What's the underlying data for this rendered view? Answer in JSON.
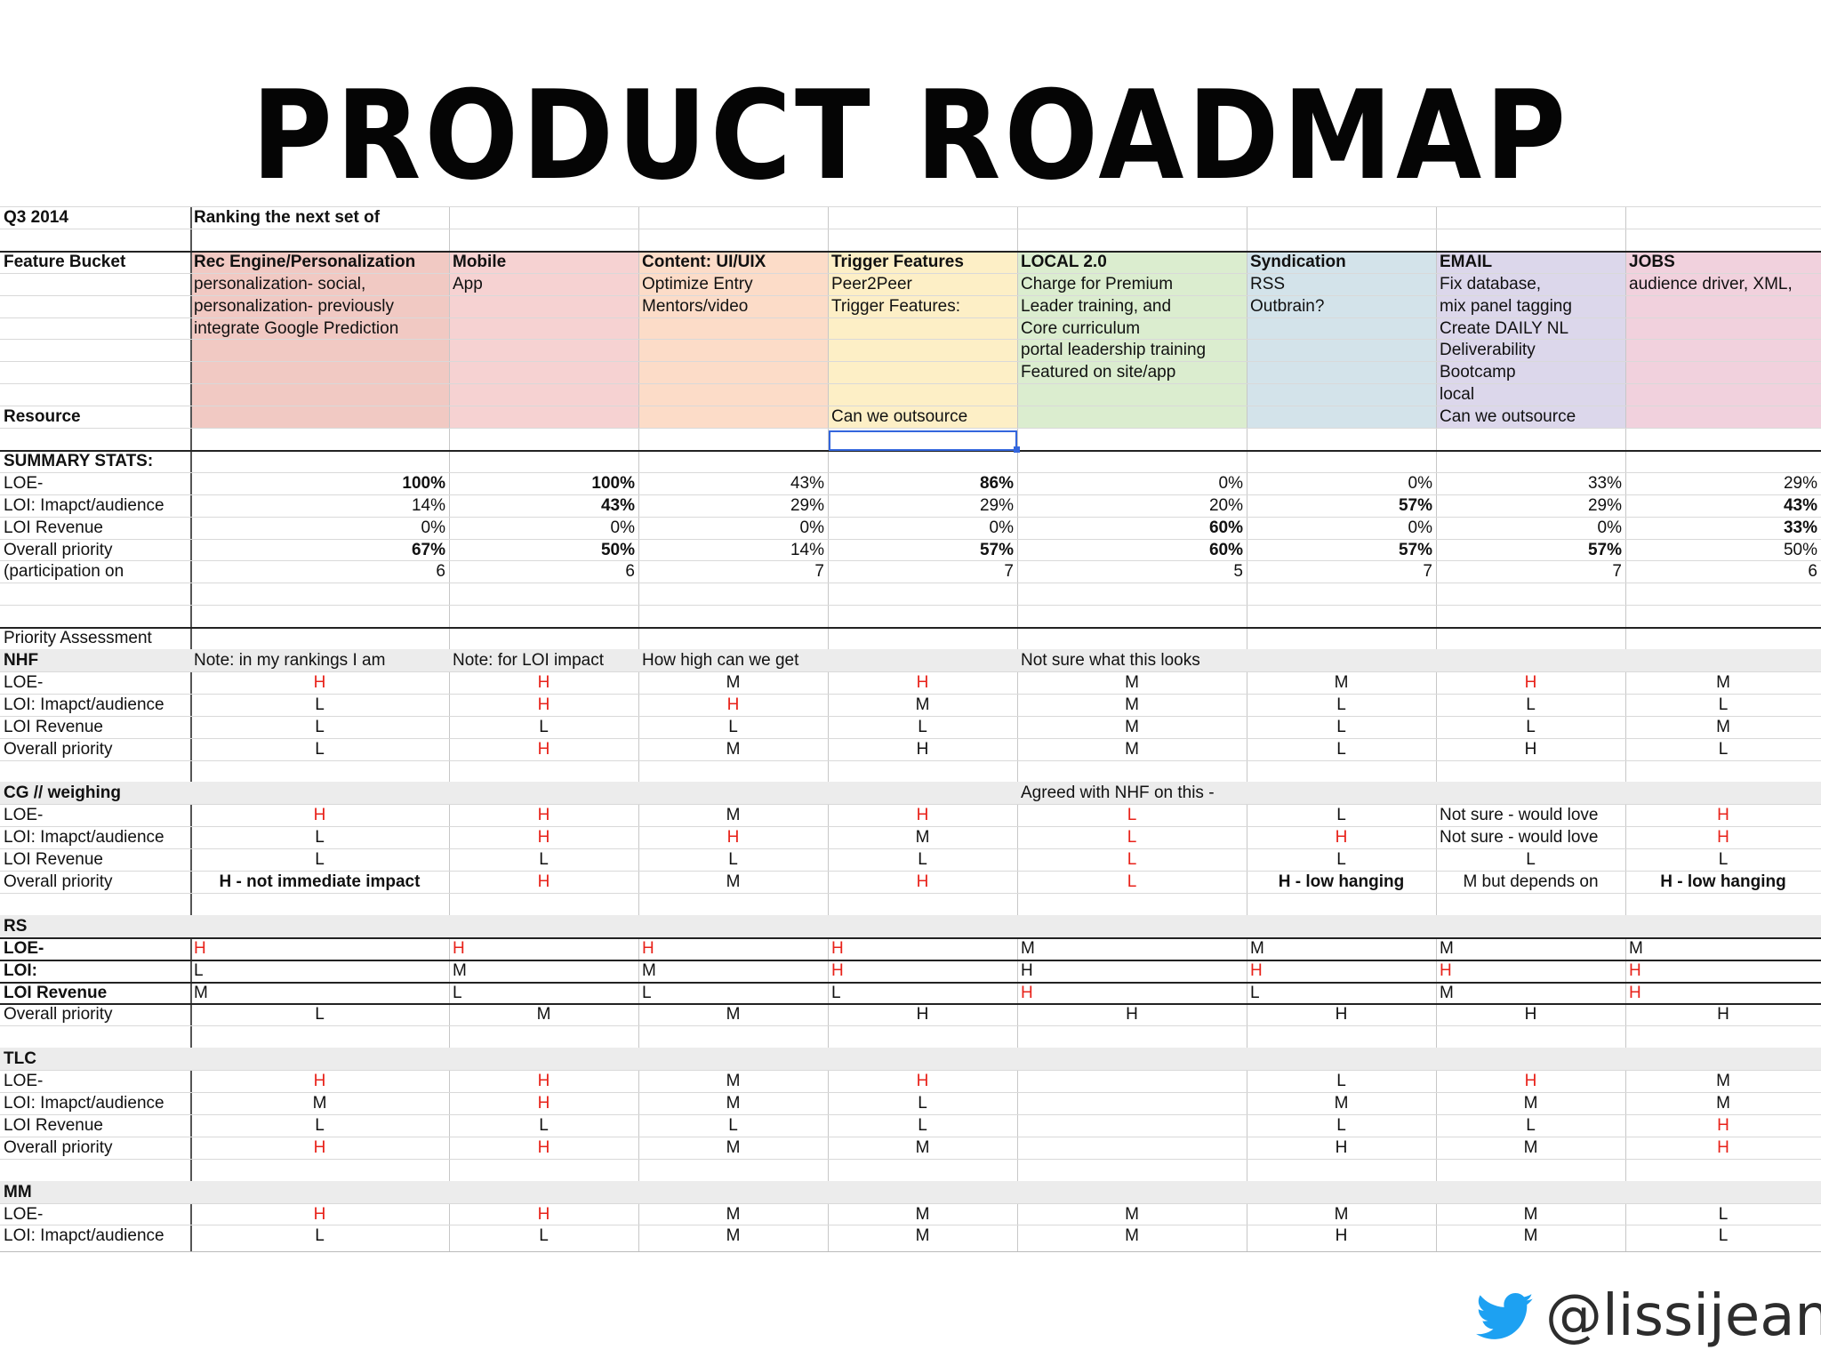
{
  "slide": {
    "title": "PRODUCT ROADMAP",
    "twitter_handle": "@lissijean"
  },
  "colors": {
    "rec_engine": "#f1c9c3",
    "mobile": "#f6d2d2",
    "content": "#fcdcc8",
    "trigger": "#fdefc6",
    "local": "#dbedcf",
    "syndication": "#d3e3ea",
    "email": "#dcd7eb",
    "jobs": "#f1d1dd",
    "alert_red": "#e8221a",
    "selection_blue": "#3366dd"
  },
  "sheet": {
    "rows": [
      [
        {
          "t": "Q3 2014",
          "b": 1
        },
        {
          "t": "Ranking the next set of",
          "b": 1,
          "o": 1
        }
      ],
      [],
      [
        {
          "t": "Feature Bucket",
          "b": 1
        },
        {
          "t": "Rec Engine/Personalization",
          "b": 1
        },
        {
          "t": "Mobile",
          "b": 1
        },
        {
          "t": "Content: UI/UIX",
          "b": 1
        },
        {
          "t": "Trigger Features",
          "b": 1
        },
        {
          "t": "LOCAL 2.0",
          "b": 1
        },
        {
          "t": "Syndication",
          "b": 1
        },
        {
          "t": "EMAIL",
          "b": 1
        },
        {
          "t": "JOBS",
          "b": 1
        }
      ],
      [
        {
          "t": ""
        },
        {
          "t": "personalization- social,"
        },
        {
          "t": "App"
        },
        {
          "t": "Optimize Entry"
        },
        {
          "t": "Peer2Peer"
        },
        {
          "t": "Charge for Premium"
        },
        {
          "t": "RSS"
        },
        {
          "t": "Fix database,"
        },
        {
          "t": "audience driver, XML,"
        }
      ],
      [
        {
          "t": ""
        },
        {
          "t": "personalization- previously"
        },
        {
          "t": ""
        },
        {
          "t": "Mentors/video"
        },
        {
          "t": "Trigger Features:"
        },
        {
          "t": "Leader training, and"
        },
        {
          "t": "Outbrain?"
        },
        {
          "t": "mix panel tagging"
        },
        {
          "t": ""
        }
      ],
      [
        {
          "t": ""
        },
        {
          "t": "integrate Google Prediction"
        },
        {
          "t": ""
        },
        {
          "t": ""
        },
        {
          "t": ""
        },
        {
          "t": "Core curriculum"
        },
        {
          "t": ""
        },
        {
          "t": "Create DAILY NL"
        },
        {
          "t": ""
        }
      ],
      [
        {
          "t": ""
        },
        {
          "t": ""
        },
        {
          "t": ""
        },
        {
          "t": ""
        },
        {
          "t": ""
        },
        {
          "t": "portal leadership training"
        },
        {
          "t": ""
        },
        {
          "t": "Deliverability"
        },
        {
          "t": ""
        }
      ],
      [
        {
          "t": ""
        },
        {
          "t": ""
        },
        {
          "t": ""
        },
        {
          "t": ""
        },
        {
          "t": ""
        },
        {
          "t": "Featured on site/app"
        },
        {
          "t": ""
        },
        {
          "t": "Bootcamp"
        },
        {
          "t": ""
        }
      ],
      [
        {
          "t": ""
        },
        {
          "t": ""
        },
        {
          "t": ""
        },
        {
          "t": ""
        },
        {
          "t": ""
        },
        {
          "t": ""
        },
        {
          "t": ""
        },
        {
          "t": "local"
        },
        {
          "t": ""
        }
      ],
      [
        {
          "t": "Resource",
          "b": 1
        },
        {
          "t": ""
        },
        {
          "t": ""
        },
        {
          "t": ""
        },
        {
          "t": "Can we outsource"
        },
        {
          "t": ""
        },
        {
          "t": ""
        },
        {
          "t": "Can we outsource"
        },
        {
          "t": ""
        }
      ],
      [],
      [
        {
          "t": "SUMMARY STATS:",
          "b": 1,
          "o": 1
        }
      ],
      [
        {
          "t": "LOE-"
        },
        {
          "t": "100%",
          "b": 1
        },
        {
          "t": "100%",
          "b": 1
        },
        {
          "t": "43%"
        },
        {
          "t": "86%",
          "b": 1
        },
        {
          "t": "0%"
        },
        {
          "t": "0%"
        },
        {
          "t": "33%"
        },
        {
          "t": "29%"
        }
      ],
      [
        {
          "t": "LOI: Imapct/audience"
        },
        {
          "t": "14%"
        },
        {
          "t": "43%",
          "b": 1
        },
        {
          "t": "29%"
        },
        {
          "t": "29%"
        },
        {
          "t": "20%"
        },
        {
          "t": "57%",
          "b": 1
        },
        {
          "t": "29%"
        },
        {
          "t": "43%",
          "b": 1
        }
      ],
      [
        {
          "t": "LOI Revenue"
        },
        {
          "t": "0%"
        },
        {
          "t": "0%"
        },
        {
          "t": "0%"
        },
        {
          "t": "0%"
        },
        {
          "t": "60%",
          "b": 1
        },
        {
          "t": "0%"
        },
        {
          "t": "0%"
        },
        {
          "t": "33%",
          "b": 1
        }
      ],
      [
        {
          "t": "Overall priority"
        },
        {
          "t": "67%",
          "b": 1
        },
        {
          "t": "50%",
          "b": 1
        },
        {
          "t": "14%"
        },
        {
          "t": "57%",
          "b": 1
        },
        {
          "t": "60%",
          "b": 1
        },
        {
          "t": "57%",
          "b": 1
        },
        {
          "t": "57%",
          "b": 1
        },
        {
          "t": "50%"
        }
      ],
      [
        {
          "t": "(participation on"
        },
        {
          "t": "6"
        },
        {
          "t": "6"
        },
        {
          "t": "7"
        },
        {
          "t": "7"
        },
        {
          "t": "5"
        },
        {
          "t": "7"
        },
        {
          "t": "7"
        },
        {
          "t": "6"
        }
      ],
      [],
      [],
      [
        {
          "t": "Priority Assessment"
        }
      ],
      [
        {
          "t": "NHF",
          "b": 1
        },
        {
          "t": "Note: in my rankings I am"
        },
        {
          "t": "Note: for LOI impact"
        },
        {
          "t": "How high can we get"
        },
        {
          "t": ""
        },
        {
          "t": "Not sure what this looks",
          "o": 1
        }
      ],
      [
        {
          "t": "LOE-"
        },
        {
          "t": "H",
          "r": 1
        },
        {
          "t": "H",
          "r": 1
        },
        {
          "t": "M"
        },
        {
          "t": "H",
          "r": 1
        },
        {
          "t": "M"
        },
        {
          "t": "M"
        },
        {
          "t": "H",
          "r": 1
        },
        {
          "t": "M"
        }
      ],
      [
        {
          "t": "LOI: Imapct/audience"
        },
        {
          "t": "L"
        },
        {
          "t": "H",
          "r": 1
        },
        {
          "t": "H",
          "r": 1
        },
        {
          "t": "M"
        },
        {
          "t": "M"
        },
        {
          "t": "L"
        },
        {
          "t": "L"
        },
        {
          "t": "L"
        }
      ],
      [
        {
          "t": "LOI Revenue"
        },
        {
          "t": "L"
        },
        {
          "t": "L"
        },
        {
          "t": "L"
        },
        {
          "t": "L"
        },
        {
          "t": "M"
        },
        {
          "t": "L"
        },
        {
          "t": "L"
        },
        {
          "t": "M"
        }
      ],
      [
        {
          "t": "Overall priority"
        },
        {
          "t": "L"
        },
        {
          "t": "H",
          "r": 1
        },
        {
          "t": "M"
        },
        {
          "t": "H"
        },
        {
          "t": "M"
        },
        {
          "t": "L"
        },
        {
          "t": "H"
        },
        {
          "t": "L"
        }
      ],
      [],
      [
        {
          "t": "CG // weighing",
          "b": 1
        },
        {
          "t": ""
        },
        {
          "t": ""
        },
        {
          "t": ""
        },
        {
          "t": ""
        },
        {
          "t": "Agreed with NHF on this -",
          "o": 1
        }
      ],
      [
        {
          "t": "LOE-"
        },
        {
          "t": "H",
          "r": 1
        },
        {
          "t": "H",
          "r": 1
        },
        {
          "t": "M"
        },
        {
          "t": "H",
          "r": 1
        },
        {
          "t": "L",
          "r": 1
        },
        {
          "t": "L"
        },
        {
          "t": "Not sure - would love"
        },
        {
          "t": "H",
          "r": 1
        }
      ],
      [
        {
          "t": "LOI: Imapct/audience"
        },
        {
          "t": "L"
        },
        {
          "t": "H",
          "r": 1
        },
        {
          "t": "H",
          "r": 1
        },
        {
          "t": "M"
        },
        {
          "t": "L",
          "r": 1
        },
        {
          "t": "H",
          "r": 1
        },
        {
          "t": "Not sure - would love"
        },
        {
          "t": "H",
          "r": 1
        }
      ],
      [
        {
          "t": "LOI Revenue"
        },
        {
          "t": "L"
        },
        {
          "t": "L"
        },
        {
          "t": "L"
        },
        {
          "t": "L"
        },
        {
          "t": "L",
          "r": 1
        },
        {
          "t": "L"
        },
        {
          "t": "L"
        },
        {
          "t": "L"
        }
      ],
      [
        {
          "t": "Overall priority"
        },
        {
          "t": "H - not immediate impact",
          "b": 1
        },
        {
          "t": "H",
          "r": 1
        },
        {
          "t": "M"
        },
        {
          "t": "H",
          "r": 1
        },
        {
          "t": "L",
          "r": 1
        },
        {
          "t": "H - low hanging",
          "b": 1
        },
        {
          "t": "M but depends on"
        },
        {
          "t": "H - low hanging",
          "b": 1
        }
      ],
      [],
      [
        {
          "t": "RS",
          "b": 1
        }
      ],
      [
        {
          "t": "LOE-",
          "b": 1
        },
        {
          "t": "H",
          "r": 1
        },
        {
          "t": "H",
          "r": 1
        },
        {
          "t": "H",
          "r": 1
        },
        {
          "t": "H",
          "r": 1
        },
        {
          "t": "M"
        },
        {
          "t": "M"
        },
        {
          "t": "M"
        },
        {
          "t": "M"
        }
      ],
      [
        {
          "t": "LOI:",
          "b": 1
        },
        {
          "t": "L"
        },
        {
          "t": "M"
        },
        {
          "t": "M"
        },
        {
          "t": "H",
          "r": 1
        },
        {
          "t": "H"
        },
        {
          "t": "H",
          "r": 1
        },
        {
          "t": "H",
          "r": 1
        },
        {
          "t": "H",
          "r": 1
        }
      ],
      [
        {
          "t": "LOI Revenue",
          "b": 1
        },
        {
          "t": "M"
        },
        {
          "t": "L"
        },
        {
          "t": "L"
        },
        {
          "t": "L"
        },
        {
          "t": "H",
          "r": 1
        },
        {
          "t": "L"
        },
        {
          "t": "M"
        },
        {
          "t": "H",
          "r": 1
        }
      ],
      [
        {
          "t": "Overall priority"
        },
        {
          "t": "L"
        },
        {
          "t": "M"
        },
        {
          "t": "M"
        },
        {
          "t": "H"
        },
        {
          "t": "H"
        },
        {
          "t": "H"
        },
        {
          "t": "H"
        },
        {
          "t": "H"
        }
      ],
      [],
      [
        {
          "t": "TLC",
          "b": 1
        }
      ],
      [
        {
          "t": "LOE-"
        },
        {
          "t": "H",
          "r": 1
        },
        {
          "t": "H",
          "r": 1
        },
        {
          "t": "M"
        },
        {
          "t": "H",
          "r": 1
        },
        {
          "t": ""
        },
        {
          "t": "L"
        },
        {
          "t": "H",
          "r": 1
        },
        {
          "t": "M"
        }
      ],
      [
        {
          "t": "LOI: Imapct/audience"
        },
        {
          "t": "M"
        },
        {
          "t": "H",
          "r": 1
        },
        {
          "t": "M"
        },
        {
          "t": "L"
        },
        {
          "t": ""
        },
        {
          "t": "M"
        },
        {
          "t": "M"
        },
        {
          "t": "M"
        }
      ],
      [
        {
          "t": "LOI Revenue"
        },
        {
          "t": "L"
        },
        {
          "t": "L"
        },
        {
          "t": "L"
        },
        {
          "t": "L"
        },
        {
          "t": ""
        },
        {
          "t": "L"
        },
        {
          "t": "L"
        },
        {
          "t": "H",
          "r": 1
        }
      ],
      [
        {
          "t": "Overall priority"
        },
        {
          "t": "H",
          "r": 1
        },
        {
          "t": "H",
          "r": 1
        },
        {
          "t": "M"
        },
        {
          "t": "M"
        },
        {
          "t": ""
        },
        {
          "t": "H"
        },
        {
          "t": "M"
        },
        {
          "t": "H",
          "r": 1
        }
      ],
      [],
      [
        {
          "t": "MM",
          "b": 1
        }
      ],
      [
        {
          "t": "LOE-"
        },
        {
          "t": "H",
          "r": 1
        },
        {
          "t": "H",
          "r": 1
        },
        {
          "t": "M"
        },
        {
          "t": "M"
        },
        {
          "t": "M"
        },
        {
          "t": "M"
        },
        {
          "t": "M"
        },
        {
          "t": "L"
        }
      ],
      [
        {
          "t": "LOI: Imapct/audience"
        },
        {
          "t": "L"
        },
        {
          "t": "L"
        },
        {
          "t": "M"
        },
        {
          "t": "M"
        },
        {
          "t": "M"
        },
        {
          "t": "H"
        },
        {
          "t": "M"
        },
        {
          "t": "L"
        }
      ]
    ]
  }
}
